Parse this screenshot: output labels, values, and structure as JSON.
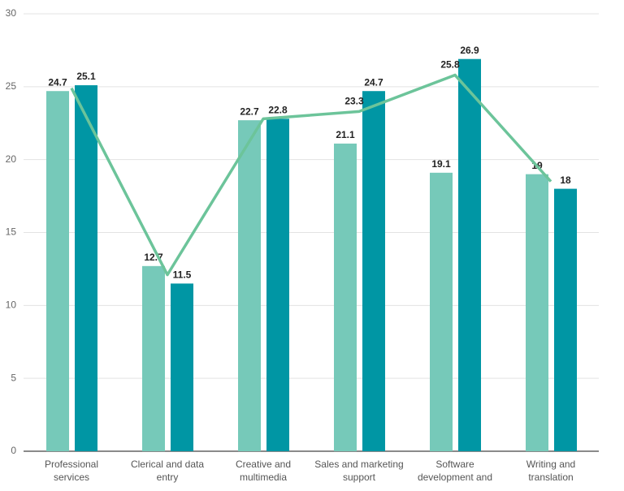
{
  "chart_data": {
    "type": "bar",
    "categories": [
      "Professional services",
      "Clerical and data entry",
      "Creative and multimedia",
      "Sales and marketing support",
      "Software development and",
      "Writing and translation"
    ],
    "series": [
      {
        "type": "bar",
        "color": "#76c9b9",
        "values": [
          24.7,
          12.7,
          22.7,
          21.1,
          19.1,
          19
        ]
      },
      {
        "type": "bar",
        "color": "#0096a4",
        "values": [
          25.1,
          11.5,
          22.8,
          24.7,
          26.9,
          18
        ]
      },
      {
        "type": "line",
        "color": "#6cc49a",
        "values": [
          24.9,
          12.1,
          22.8,
          23.3,
          25.8,
          18.5
        ],
        "value_labels": [
          null,
          null,
          null,
          "23.3",
          "25.8",
          null
        ]
      }
    ],
    "ylim": [
      0,
      30
    ],
    "yticks": [
      0,
      5,
      10,
      15,
      20,
      25,
      30
    ],
    "grid": true
  }
}
